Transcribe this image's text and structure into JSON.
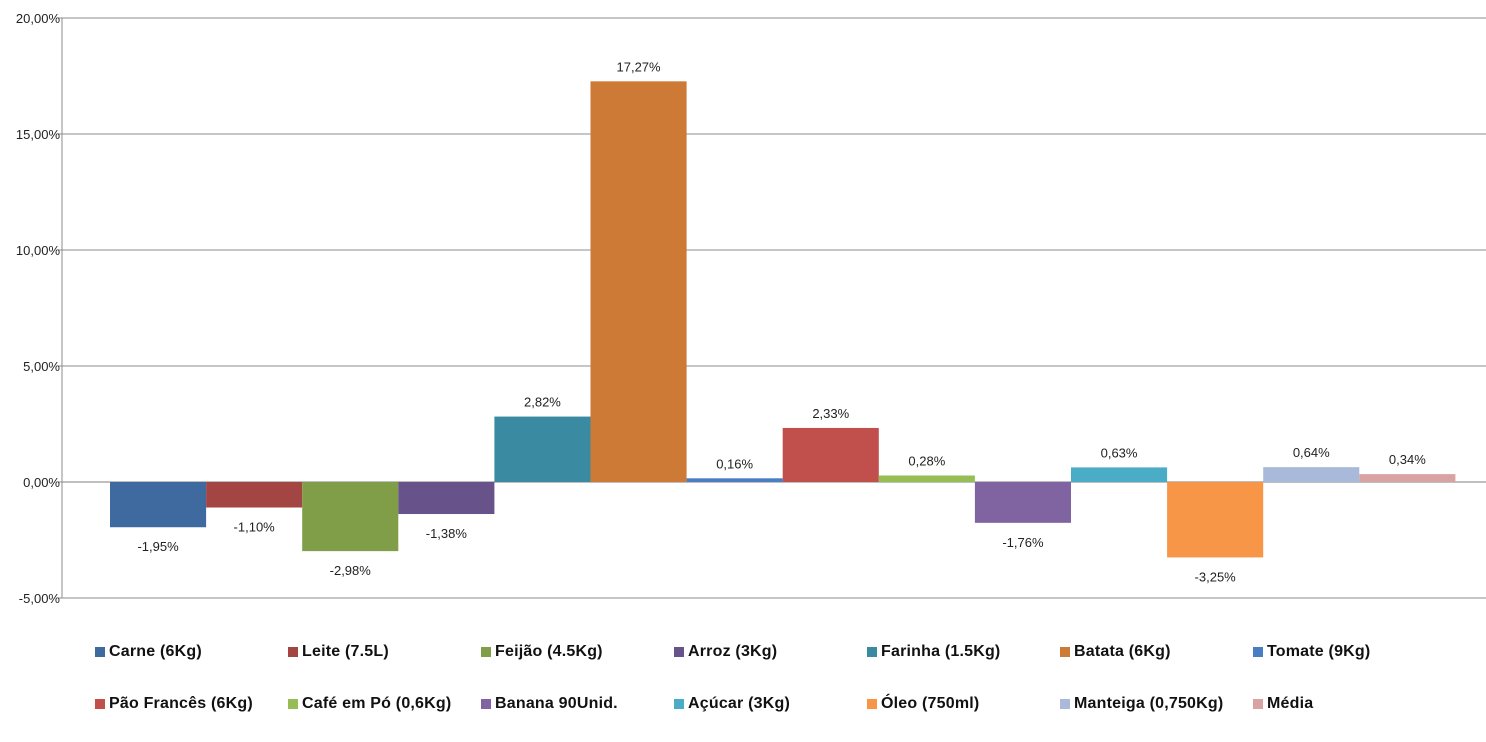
{
  "chart_data": {
    "type": "bar",
    "categories": [
      "Carne (6Kg)",
      "Leite (7.5L)",
      "Feijão (4.5Kg)",
      "Arroz (3Kg)",
      "Farinha (1.5Kg)",
      "Batata (6Kg)",
      "Tomate (9Kg)",
      "Pão Francês (6Kg)",
      "Café em Pó (0,6Kg)",
      "Banana 90Unid.",
      "Açúcar (3Kg)",
      "Óleo (750ml)",
      "Manteiga (0,750Kg)",
      "Média"
    ],
    "values": [
      -1.95,
      -1.1,
      -2.98,
      -1.38,
      2.82,
      17.27,
      0.16,
      2.33,
      0.28,
      -1.76,
      0.63,
      -3.25,
      0.64,
      0.34
    ],
    "data_labels": [
      "-1,95%",
      "-1,10%",
      "-2,98%",
      "-1,38%",
      "2,82%",
      "17,27%",
      "0,16%",
      "2,33%",
      "0,28%",
      "-1,76%",
      "0,63%",
      "-3,25%",
      "0,64%",
      "0,34%"
    ],
    "colors": [
      "#3F6AA0",
      "#A34542",
      "#809D47",
      "#68528A",
      "#3A8AA1",
      "#CD7A36",
      "#4A7EC2",
      "#C14F4C",
      "#97BE55",
      "#8064A2",
      "#4BACC6",
      "#F79646",
      "#A9B9D9",
      "#D8A3A2"
    ],
    "y_ticks": [
      -5,
      0,
      5,
      10,
      15,
      20
    ],
    "y_tick_labels": [
      "-5,00%",
      "0,00%",
      "5,00%",
      "10,00%",
      "15,00%",
      "20,00%"
    ],
    "ylim": [
      -5,
      20
    ],
    "grid": true,
    "legend_position": "bottom",
    "title": "",
    "xlabel": "",
    "ylabel": ""
  }
}
